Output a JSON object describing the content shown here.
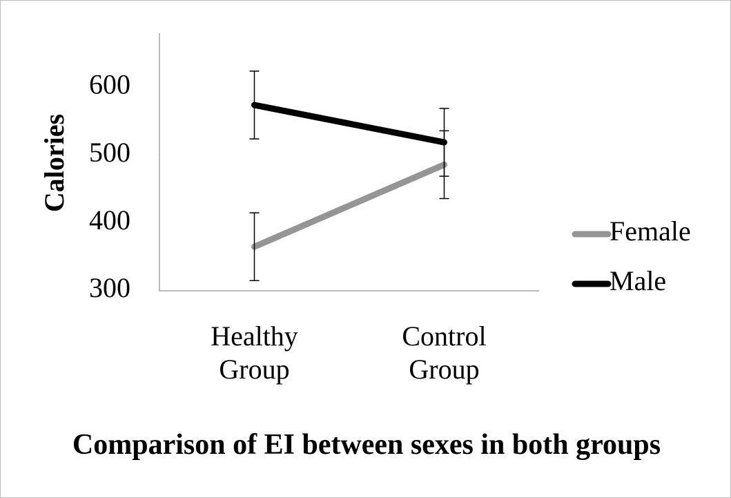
{
  "chart_data": {
    "type": "line",
    "title": "Comparison of EI between sexes in both groups",
    "y_label": "Calories",
    "categories": [
      "Healthy Group",
      "Control Group"
    ],
    "series": [
      {
        "name": "Female",
        "color": "#959595",
        "values": [
          365,
          486
        ],
        "errors": [
          50,
          50
        ]
      },
      {
        "name": "Male",
        "color": "#000000",
        "values": [
          574,
          519
        ],
        "errors": [
          50,
          50
        ]
      }
    ],
    "ylim": [
      300,
      680
    ],
    "yticks": [
      300,
      400,
      500,
      600
    ],
    "legend": "right"
  }
}
